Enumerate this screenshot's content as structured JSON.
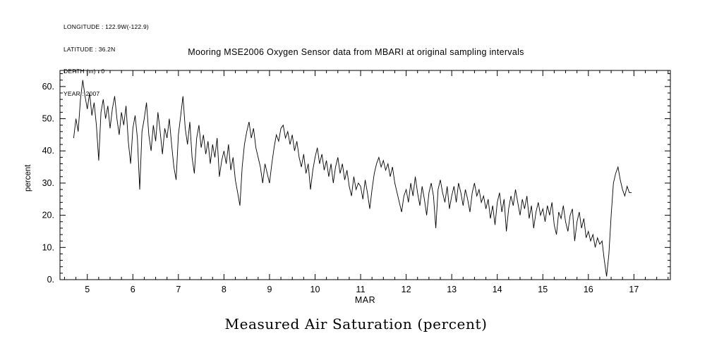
{
  "meta": {
    "lines": [
      "LONGITUDE : 122.9W(-122.9)",
      "LATITUDE : 36.2N",
      "DEPTH (m) : 0",
      "YEAR : 2007"
    ]
  },
  "title": "Mooring MSE2006 Oxygen Sensor data from MBARI at original sampling intervals",
  "caption": "Measured Air Saturation (percent)",
  "chart_data": {
    "type": "line",
    "title": "Mooring MSE2006 Oxygen Sensor data from MBARI at original sampling intervals",
    "xlabel": "MAR",
    "ylabel": "percent",
    "xlim": [
      4.4,
      17.8
    ],
    "ylim": [
      0,
      65
    ],
    "grid": false,
    "legend": "none",
    "line_color": "#000000",
    "background": "#ffffff",
    "x_ticks": [
      5,
      6,
      7,
      8,
      9,
      10,
      11,
      12,
      13,
      14,
      15,
      16,
      17
    ],
    "x_tick_labels": [
      "5",
      "6",
      "7",
      "8",
      "9",
      "10",
      "11",
      "12",
      "13",
      "14",
      "15",
      "16",
      "17"
    ],
    "y_ticks": [
      0,
      10,
      20,
      30,
      40,
      50,
      60
    ],
    "y_tick_labels": [
      "0.",
      "10.",
      "20.",
      "30.",
      "40.",
      "50.",
      "60."
    ],
    "series": [
      {
        "name": "measured-air-saturation",
        "x_start": 4.7,
        "x_step": 0.05,
        "values": [
          44,
          50,
          46,
          56,
          62,
          57,
          53,
          58,
          51,
          55,
          48,
          37,
          52,
          56,
          50,
          54,
          47,
          53,
          57,
          50,
          45,
          52,
          48,
          54,
          43,
          36,
          47,
          51,
          44,
          28,
          46,
          50,
          55,
          45,
          40,
          48,
          43,
          52,
          46,
          39,
          47,
          44,
          50,
          42,
          35,
          31,
          45,
          51,
          57,
          47,
          42,
          49,
          38,
          33,
          44,
          48,
          41,
          45,
          39,
          43,
          36,
          42,
          38,
          44,
          32,
          37,
          40,
          36,
          42,
          34,
          38,
          31,
          27,
          23,
          35,
          42,
          46,
          49,
          44,
          47,
          41,
          38,
          35,
          30,
          36,
          33,
          30,
          36,
          41,
          45,
          43,
          47,
          48,
          44,
          46,
          42,
          45,
          40,
          43,
          38,
          35,
          39,
          33,
          36,
          28,
          34,
          38,
          41,
          36,
          39,
          34,
          37,
          32,
          36,
          30,
          35,
          38,
          33,
          36,
          31,
          34,
          29,
          26,
          32,
          28,
          30,
          29,
          25,
          31,
          27,
          22,
          28,
          33,
          36,
          38,
          35,
          37,
          34,
          36,
          32,
          35,
          30,
          27,
          24,
          21,
          26,
          28,
          24,
          30,
          26,
          32,
          27,
          23,
          29,
          25,
          20,
          27,
          30,
          26,
          16,
          28,
          31,
          27,
          24,
          29,
          22,
          26,
          29,
          24,
          30,
          27,
          23,
          28,
          25,
          21,
          27,
          30,
          26,
          28,
          24,
          26,
          22,
          25,
          19,
          23,
          17,
          24,
          27,
          21,
          25,
          15,
          22,
          26,
          23,
          28,
          24,
          20,
          25,
          22,
          26,
          19,
          23,
          16,
          21,
          24,
          20,
          22,
          18,
          23,
          20,
          24,
          17,
          14,
          21,
          19,
          23,
          18,
          15,
          20,
          22,
          12,
          18,
          21,
          16,
          19,
          13,
          15,
          12,
          14,
          10,
          13,
          11,
          12,
          6,
          1,
          8,
          20,
          30,
          33,
          35,
          31,
          28,
          26,
          29,
          27,
          27
        ]
      }
    ]
  }
}
